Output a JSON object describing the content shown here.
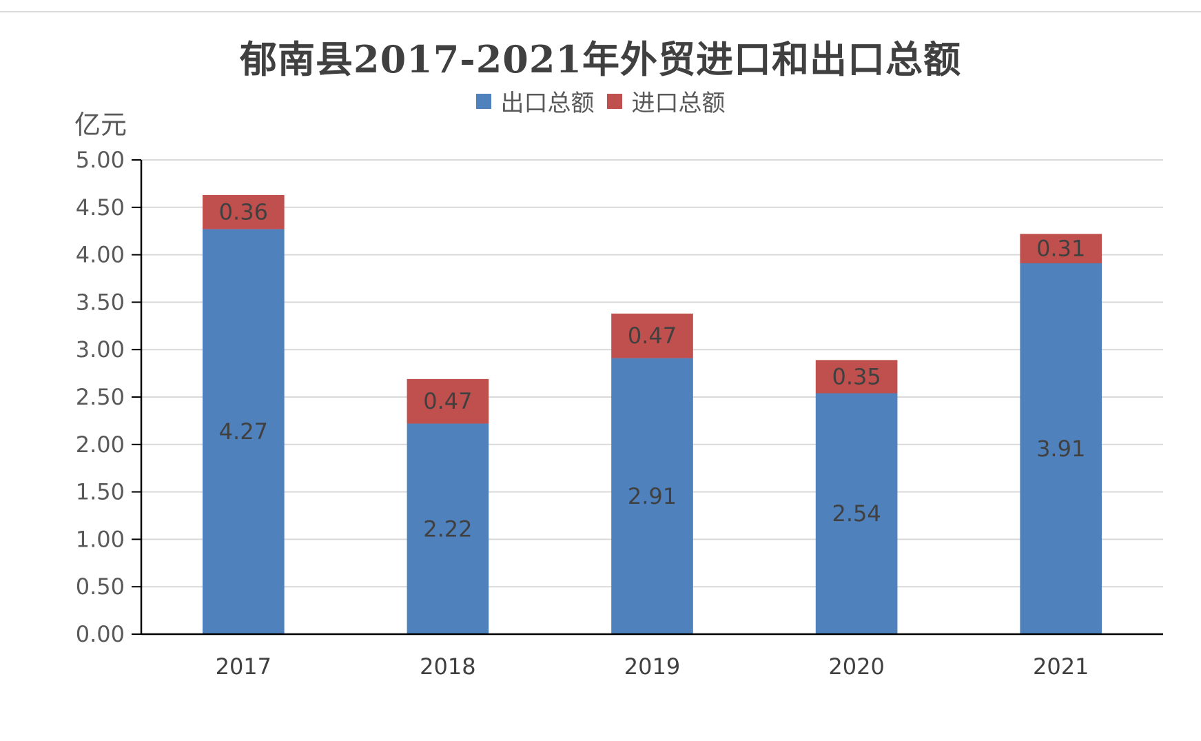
{
  "chart_data": {
    "type": "bar",
    "stacked": true,
    "title": "郁南县2017-2021年外贸进口和出口总额",
    "ylabel": "亿元",
    "categories": [
      "2017",
      "2018",
      "2019",
      "2020",
      "2021"
    ],
    "series": [
      {
        "name": "出口总额",
        "color": "#4f81bd",
        "values": [
          4.27,
          2.22,
          2.91,
          2.54,
          3.91
        ]
      },
      {
        "name": "进口总额",
        "color": "#c0504d",
        "values": [
          0.36,
          0.47,
          0.47,
          0.35,
          0.31
        ]
      }
    ],
    "ylim": [
      0,
      5
    ],
    "yticks": [
      "0.00",
      "0.50",
      "1.00",
      "1.50",
      "2.00",
      "2.50",
      "3.00",
      "3.50",
      "4.00",
      "4.50",
      "5.00"
    ],
    "grid": true,
    "legend_position": "top"
  }
}
